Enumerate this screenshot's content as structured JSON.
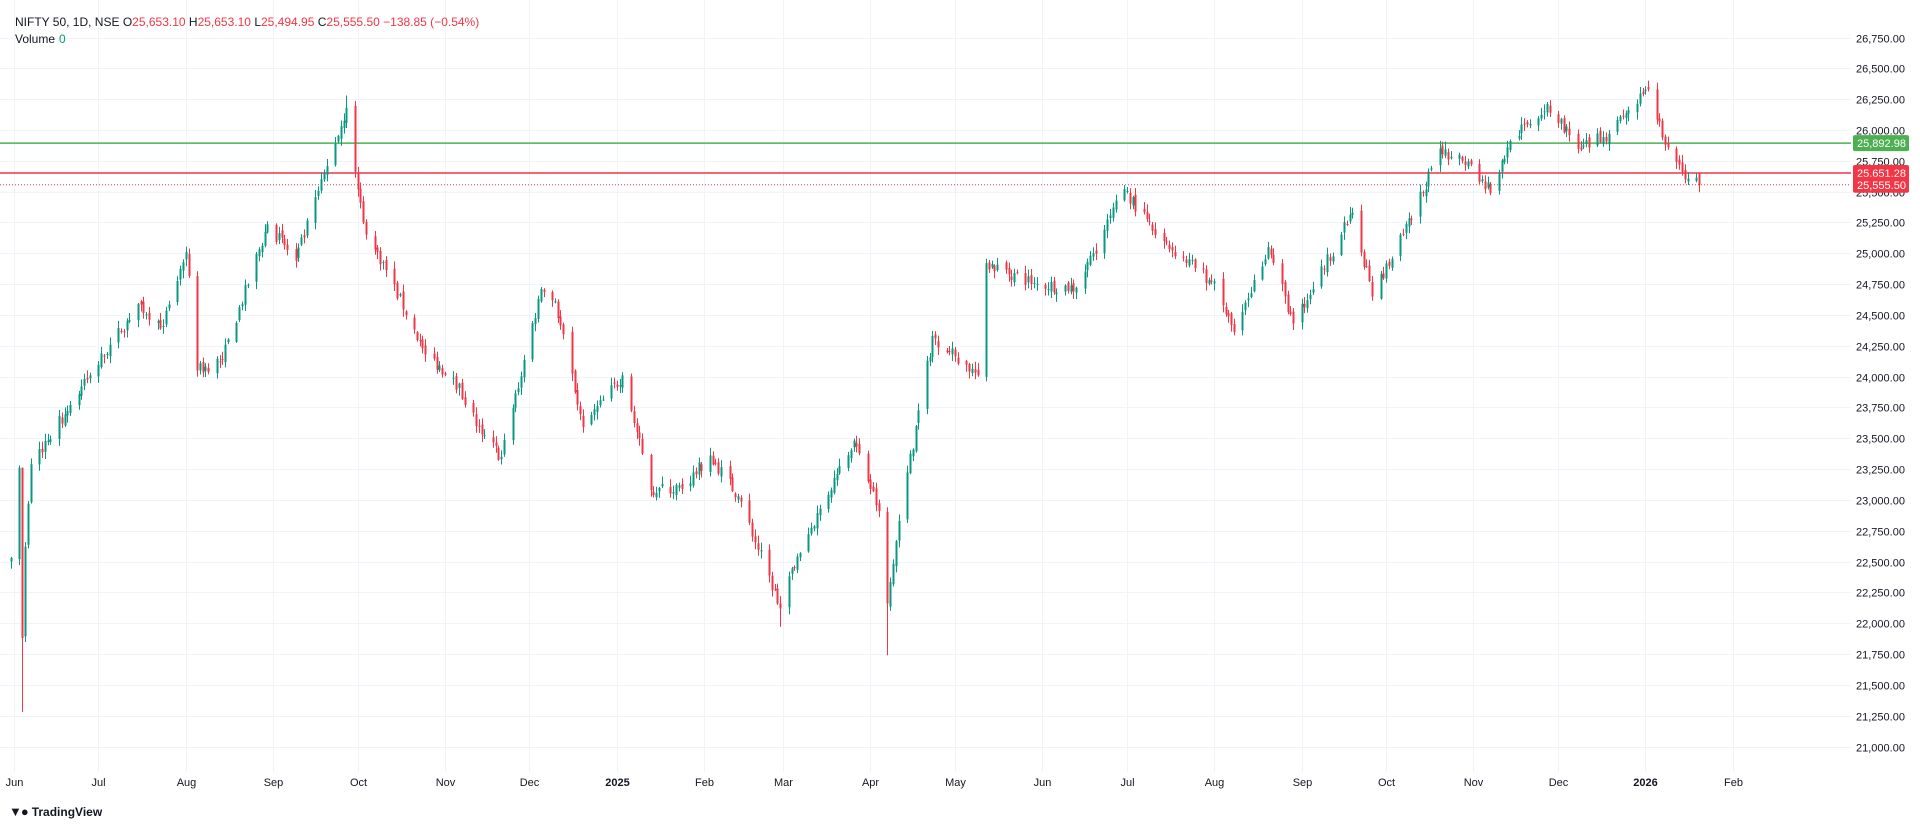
{
  "legend": {
    "symbol": "NIFTY 50, 1D, NSE",
    "open_label": "O",
    "open": "25,653.10",
    "high_label": "H",
    "high": "25,653.10",
    "low_label": "L",
    "low": "25,494.95",
    "close_label": "C",
    "close": "25,555.50",
    "change": "−138.85 (−0.54%)",
    "volume_label": "Volume",
    "volume_value": "0"
  },
  "brand": "TradingView",
  "colors": {
    "up": "#089981",
    "down": "#f23645",
    "green_line": "#4caf50",
    "red_line": "#f23645",
    "grid": "#f0f3fa"
  },
  "chart_data": {
    "type": "candlestick",
    "y_range": [
      20850,
      26950
    ],
    "y_ticks": [
      21000,
      21250,
      21500,
      21750,
      22000,
      22250,
      22500,
      22750,
      23000,
      23250,
      23500,
      23750,
      24000,
      24250,
      24500,
      24750,
      25000,
      25250,
      25500,
      25750,
      26000,
      26250,
      26500,
      26750
    ],
    "y_tick_labels": [
      "21,000.00",
      "21,250.00",
      "21,500.00",
      "21,750.00",
      "22,000.00",
      "22,250.00",
      "22,500.00",
      "22,750.00",
      "23,000.00",
      "23,250.00",
      "23,500.00",
      "23,750.00",
      "24,000.00",
      "24,250.00",
      "24,500.00",
      "24,750.00",
      "25,000.00",
      "25,250.00",
      "25,500.00",
      "25,750.00",
      "26,000.00",
      "26,250.00",
      "26,500.00",
      "26,750.00"
    ],
    "x_labels": [
      {
        "date": "2024-06-01",
        "text": "Jun"
      },
      {
        "date": "2024-07-01",
        "text": "Jul"
      },
      {
        "date": "2024-08-01",
        "text": "Aug"
      },
      {
        "date": "2024-09-01",
        "text": "Sep"
      },
      {
        "date": "2024-10-01",
        "text": "Oct"
      },
      {
        "date": "2024-11-01",
        "text": "Nov"
      },
      {
        "date": "2024-12-01",
        "text": "Dec"
      },
      {
        "date": "2025-01-01",
        "text": "2025",
        "bold": true
      },
      {
        "date": "2025-02-01",
        "text": "Feb"
      },
      {
        "date": "2025-03-01",
        "text": "Mar"
      },
      {
        "date": "2025-04-01",
        "text": "Apr"
      },
      {
        "date": "2025-05-01",
        "text": "May"
      },
      {
        "date": "2025-06-01",
        "text": "Jun"
      },
      {
        "date": "2025-07-01",
        "text": "Jul"
      },
      {
        "date": "2025-08-01",
        "text": "Aug"
      },
      {
        "date": "2025-09-01",
        "text": "Sep"
      },
      {
        "date": "2025-10-01",
        "text": "Oct"
      },
      {
        "date": "2025-11-01",
        "text": "Nov"
      },
      {
        "date": "2025-12-01",
        "text": "Dec"
      },
      {
        "date": "2026-01-01",
        "text": "2026",
        "bold": true
      },
      {
        "date": "2026-02-01",
        "text": "Feb"
      }
    ],
    "x_range": [
      "2024-05-31",
      "2026-03-10"
    ],
    "horizontal_lines": [
      {
        "value": 25892.98,
        "label": "25,892.98",
        "color": "#4caf50"
      },
      {
        "value": 25651.28,
        "label": "25,651.28",
        "color": "#f23645"
      }
    ],
    "last_price": {
      "value": 25555.5,
      "label": "25,555.50"
    },
    "anchors": [
      {
        "date": "2024-05-31",
        "close": 22530
      },
      {
        "date": "2024-06-03",
        "close": 23260
      },
      {
        "date": "2024-06-04",
        "close": 21880
      },
      {
        "date": "2024-06-05",
        "close": 22620
      },
      {
        "date": "2024-06-07",
        "close": 23290
      },
      {
        "date": "2024-06-28",
        "close": 24010
      },
      {
        "date": "2024-07-15",
        "close": 24590
      },
      {
        "date": "2024-07-24",
        "close": 24410
      },
      {
        "date": "2024-08-01",
        "close": 25010
      },
      {
        "date": "2024-08-05",
        "close": 24050
      },
      {
        "date": "2024-08-14",
        "close": 24140
      },
      {
        "date": "2024-08-30",
        "close": 25235
      },
      {
        "date": "2024-09-09",
        "close": 24940
      },
      {
        "date": "2024-09-27",
        "close": 26180
      },
      {
        "date": "2024-10-03",
        "close": 25250
      },
      {
        "date": "2024-10-08",
        "close": 25010
      },
      {
        "date": "2024-10-25",
        "close": 24180
      },
      {
        "date": "2024-11-04",
        "close": 23990
      },
      {
        "date": "2024-11-14",
        "close": 23530
      },
      {
        "date": "2024-11-21",
        "close": 23350
      },
      {
        "date": "2024-12-05",
        "close": 24710
      },
      {
        "date": "2024-12-10",
        "close": 24610
      },
      {
        "date": "2024-12-20",
        "close": 23590
      },
      {
        "date": "2025-01-03",
        "close": 24010
      },
      {
        "date": "2025-01-13",
        "close": 23080
      },
      {
        "date": "2025-01-24",
        "close": 23090
      },
      {
        "date": "2025-02-03",
        "close": 23360
      },
      {
        "date": "2025-02-13",
        "close": 23030
      },
      {
        "date": "2025-02-28",
        "close": 22120
      },
      {
        "date": "2025-03-06",
        "close": 22540
      },
      {
        "date": "2025-03-20",
        "close": 23210
      },
      {
        "date": "2025-03-26",
        "close": 23480
      },
      {
        "date": "2025-04-04",
        "close": 22910
      },
      {
        "date": "2025-04-07",
        "close": 22160
      },
      {
        "date": "2025-04-11",
        "close": 22830
      },
      {
        "date": "2025-04-23",
        "close": 24330
      },
      {
        "date": "2025-05-09",
        "close": 24010
      },
      {
        "date": "2025-05-12",
        "close": 24920
      },
      {
        "date": "2025-05-30",
        "close": 24750
      },
      {
        "date": "2025-06-13",
        "close": 24720
      },
      {
        "date": "2025-06-30",
        "close": 25520
      },
      {
        "date": "2025-07-11",
        "close": 25150
      },
      {
        "date": "2025-07-31",
        "close": 24770
      },
      {
        "date": "2025-08-08",
        "close": 24360
      },
      {
        "date": "2025-08-20",
        "close": 25050
      },
      {
        "date": "2025-08-29",
        "close": 24430
      },
      {
        "date": "2025-09-19",
        "close": 25330
      },
      {
        "date": "2025-09-26",
        "close": 24650
      },
      {
        "date": "2025-10-10",
        "close": 25280
      },
      {
        "date": "2025-10-20",
        "close": 25850
      },
      {
        "date": "2025-10-31",
        "close": 25720
      },
      {
        "date": "2025-11-04",
        "close": 25600
      },
      {
        "date": "2025-11-07",
        "close": 25490
      },
      {
        "date": "2025-11-14",
        "close": 25910
      },
      {
        "date": "2025-11-27",
        "close": 26210
      },
      {
        "date": "2025-12-09",
        "close": 25840
      },
      {
        "date": "2025-12-19",
        "close": 25970
      },
      {
        "date": "2026-01-02",
        "close": 26330
      },
      {
        "date": "2026-01-08",
        "close": 25880
      },
      {
        "date": "2026-01-14",
        "close": 25660
      },
      {
        "date": "2026-01-20",
        "close": 25555.5
      }
    ]
  }
}
